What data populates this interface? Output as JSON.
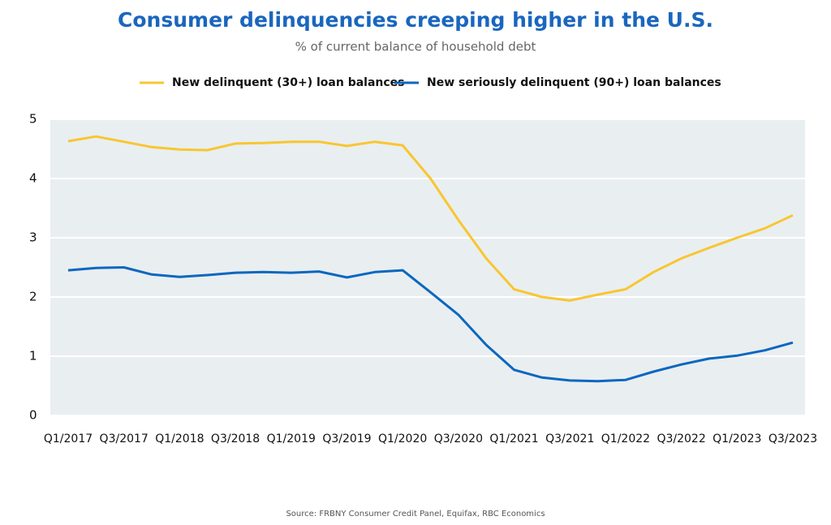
{
  "chart_data": {
    "type": "line",
    "title": "Consumer delinquencies creeping higher in the U.S.",
    "subtitle": "% of current balance of household debt",
    "source": "Source: FRBNY Consumer Credit Panel, Equifax, RBC Economics",
    "categories": [
      "Q1/2017",
      null,
      "Q3/2017",
      null,
      "Q1/2018",
      null,
      "Q3/2018",
      null,
      "Q1/2019",
      null,
      "Q3/2019",
      null,
      "Q1/2020",
      null,
      "Q3/2020",
      null,
      "Q1/2021",
      null,
      "Q3/2021",
      null,
      "Q1/2022",
      null,
      "Q3/2022",
      null,
      "Q1/2023",
      null,
      "Q3/2023"
    ],
    "series": [
      {
        "name": "New delinquent (30+) loan balances",
        "color": "#f8c630",
        "values": [
          4.63,
          4.71,
          4.62,
          4.53,
          4.49,
          4.48,
          4.59,
          4.6,
          4.62,
          4.62,
          4.55,
          4.62,
          4.56,
          4.0,
          3.3,
          2.65,
          2.13,
          2.0,
          1.94,
          2.04,
          2.13,
          2.42,
          2.65,
          2.83,
          3.0,
          3.16,
          3.38
        ]
      },
      {
        "name": "New seriously delinquent (90+) loan balances",
        "color": "#0b67bf",
        "values": [
          2.45,
          2.49,
          2.5,
          2.38,
          2.34,
          2.37,
          2.41,
          2.42,
          2.41,
          2.43,
          2.33,
          2.42,
          2.45,
          2.08,
          1.7,
          1.19,
          0.77,
          0.64,
          0.59,
          0.58,
          0.6,
          0.74,
          0.86,
          0.96,
          1.01,
          1.1,
          1.23
        ]
      }
    ],
    "ylim": [
      0,
      5
    ],
    "yticks": [
      0,
      1,
      2,
      3,
      4,
      5
    ],
    "grid": true
  }
}
